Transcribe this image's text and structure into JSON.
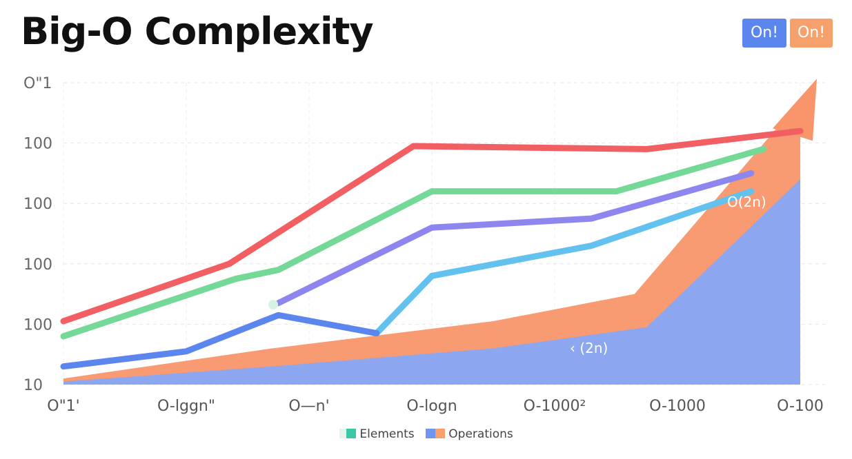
{
  "title": "Big-O Complexity",
  "badges": [
    {
      "label": "On!",
      "color": "#5b86ee"
    },
    {
      "label": "On!",
      "color": "#f6a06b"
    }
  ],
  "chart_data": {
    "type": "line",
    "title": "Big-O Complexity",
    "categories": [
      "O\"1'",
      "O-lggn\"",
      "O—n'",
      "O-logn",
      "O-1000²",
      "O-1000",
      "O-100"
    ],
    "y_tick_labels": [
      "10",
      "100",
      "100",
      "100",
      "100",
      "O\"1"
    ],
    "grid": true,
    "colors": {
      "red": "#f25f63",
      "green": "#74d897",
      "purple": "#8c86ee",
      "cyan": "#62c1ef",
      "blue": "#5b86ee",
      "orange": "#f6a06b",
      "area_blue": "#86a6f7",
      "area_orange": "#f8956a"
    },
    "series": [
      {
        "color": "red",
        "kind": "line",
        "x": [
          0,
          1.35,
          2.85,
          4.75,
          6.0
        ],
        "y": [
          1.05,
          2.0,
          3.95,
          3.9,
          4.2
        ]
      },
      {
        "color": "green",
        "kind": "line",
        "x": [
          0,
          1.4,
          1.75,
          3.0,
          4.5,
          5.7
        ],
        "y": [
          0.8,
          1.75,
          1.9,
          3.2,
          3.2,
          3.9
        ]
      },
      {
        "color": "purple",
        "kind": "line",
        "x": [
          1.75,
          3.0,
          4.3,
          5.6
        ],
        "y": [
          1.35,
          2.6,
          2.75,
          3.5
        ]
      },
      {
        "color": "cyan",
        "kind": "line",
        "x": [
          2.55,
          3.0,
          4.3,
          5.6
        ],
        "y": [
          0.85,
          1.8,
          2.3,
          3.2
        ]
      },
      {
        "color": "blue",
        "kind": "line",
        "x": [
          0,
          1.0,
          1.75,
          2.55
        ],
        "y": [
          0.3,
          0.55,
          1.15,
          0.85
        ]
      },
      {
        "color": "area_blue",
        "kind": "area",
        "x": [
          0,
          1.7,
          3.5,
          4.75,
          6.0
        ],
        "y": [
          0.05,
          0.3,
          0.6,
          0.95,
          3.4
        ]
      },
      {
        "color": "area_orange",
        "kind": "area",
        "x": [
          0,
          1.7,
          3.5,
          4.65,
          6.0
        ],
        "y": [
          0.1,
          0.6,
          1.05,
          1.5,
          4.7
        ]
      }
    ],
    "annotations": [
      "O(2n)",
      "‹ (2n)"
    ]
  },
  "legend": [
    {
      "label": "Elements",
      "color": "#3cc7a6"
    },
    {
      "label": "Operations",
      "color": "#f6a06b"
    }
  ]
}
